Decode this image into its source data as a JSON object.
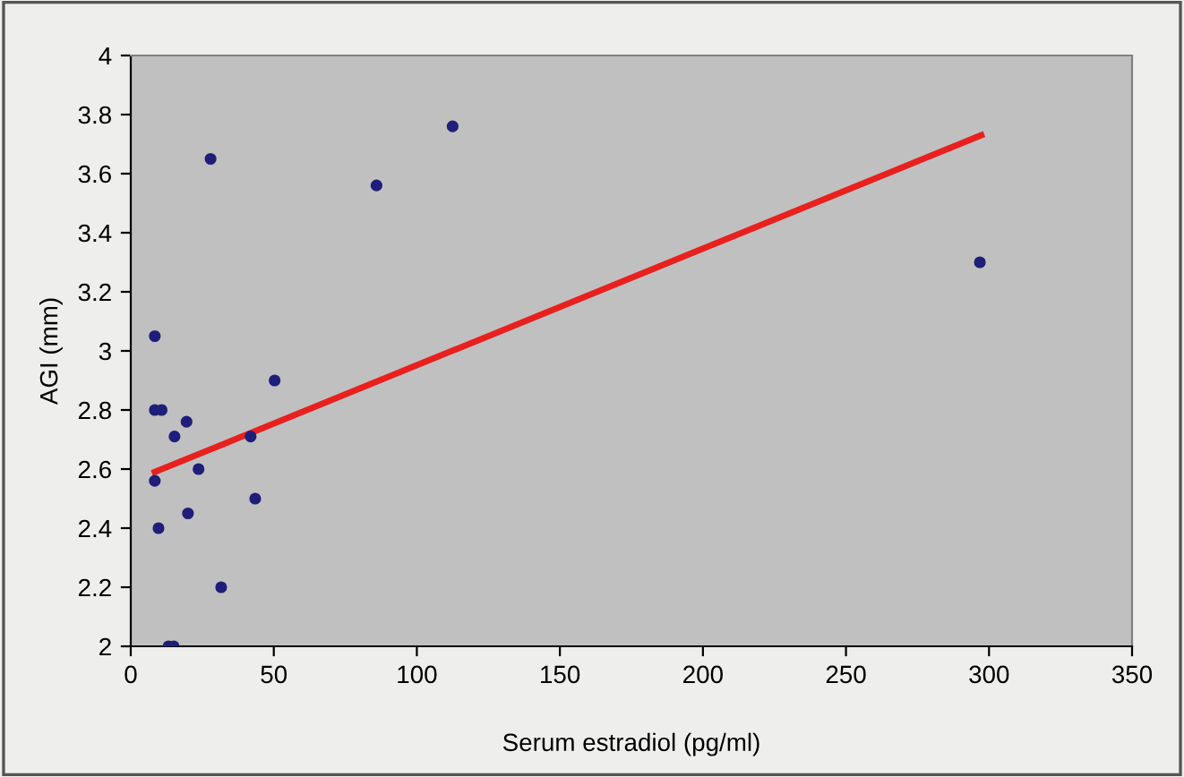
{
  "chart_data": {
    "type": "scatter",
    "xlabel": "Serum estradiol (pg/ml)",
    "ylabel": "AGI (mm)",
    "xlim": [
      0,
      350
    ],
    "xticks": [
      0,
      50,
      100,
      150,
      200,
      250,
      300,
      350
    ],
    "ylim": [
      2,
      4
    ],
    "yticks": [
      2,
      {
        "value": 2.2,
        "label": "2.2"
      },
      {
        "value": 2.4,
        "label": "2.4"
      },
      {
        "value": 2.6,
        "label": "2.6"
      },
      {
        "value": 2.8,
        "label": "2.8"
      },
      3,
      {
        "value": 3.2,
        "label": "3.2"
      },
      {
        "value": 3.4,
        "label": "3.4"
      },
      {
        "value": 3.6,
        "label": "3.6"
      },
      {
        "value": 3.8,
        "label": "3.8"
      },
      4
    ],
    "grid": false,
    "marker": "circle",
    "series": [
      {
        "color": "#1f1f7a",
        "x": [
          8.4,
          8.4,
          10.8,
          15.3,
          19.5,
          23.7,
          8.4,
          9.7,
          20,
          31.6,
          13.2,
          15,
          27.9,
          41.9,
          43.5,
          50.3,
          85.9,
          112.5,
          296.8
        ],
        "values": [
          3.05,
          2.8,
          2.8,
          2.71,
          2.76,
          2.6,
          2.56,
          2.4,
          2.45,
          2.2,
          2.0,
          2.0,
          3.65,
          2.71,
          2.5,
          2.9,
          3.56,
          3.76,
          3.3
        ]
      },
      {
        "type": "line",
        "color": "#e8201e",
        "marker": "none",
        "x": [
          8.4,
          297.3
        ],
        "values": [
          2.59,
          3.73
        ]
      }
    ]
  }
}
